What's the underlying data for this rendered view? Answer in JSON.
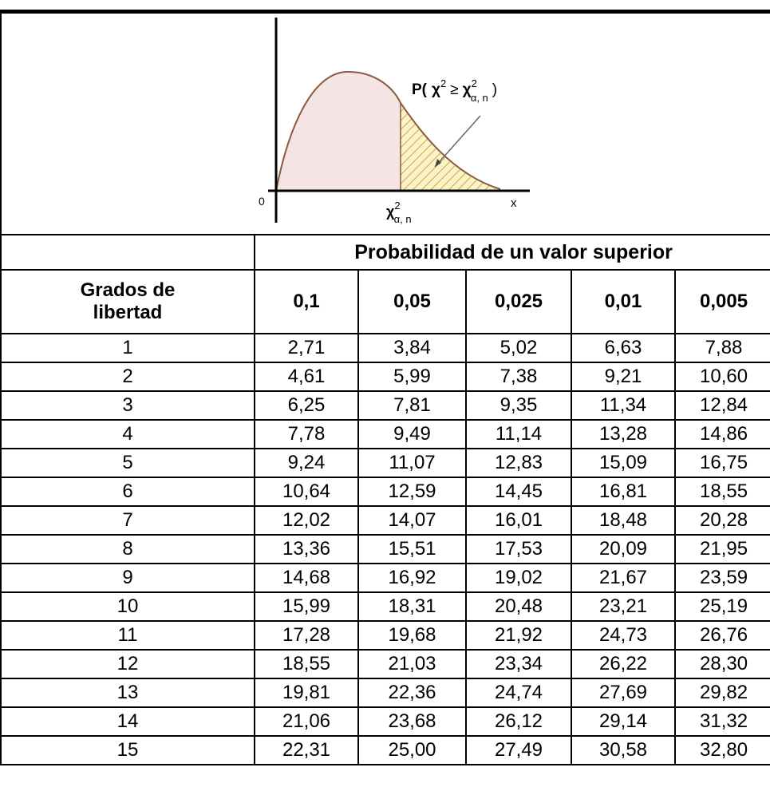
{
  "diagram": {
    "label": [
      "P(",
      "χ",
      "2",
      "≥",
      "χ",
      "2",
      "α, n",
      ")"
    ],
    "origin": "0",
    "x_axis": "x",
    "critical": [
      "χ",
      "2",
      "α, n"
    ]
  },
  "table": {
    "group_header": "Probabilidad de un valor superior",
    "row_header": "Grados de libertad",
    "columns": [
      "0,1",
      "0,05",
      "0,025",
      "0,01",
      "0,005"
    ],
    "rows": [
      [
        "1",
        "2,71",
        "3,84",
        "5,02",
        "6,63",
        "7,88"
      ],
      [
        "2",
        "4,61",
        "5,99",
        "7,38",
        "9,21",
        "10,60"
      ],
      [
        "3",
        "6,25",
        "7,81",
        "9,35",
        "11,34",
        "12,84"
      ],
      [
        "4",
        "7,78",
        "9,49",
        "11,14",
        "13,28",
        "14,86"
      ],
      [
        "5",
        "9,24",
        "11,07",
        "12,83",
        "15,09",
        "16,75"
      ],
      [
        "6",
        "10,64",
        "12,59",
        "14,45",
        "16,81",
        "18,55"
      ],
      [
        "7",
        "12,02",
        "14,07",
        "16,01",
        "18,48",
        "20,28"
      ],
      [
        "8",
        "13,36",
        "15,51",
        "17,53",
        "20,09",
        "21,95"
      ],
      [
        "9",
        "14,68",
        "16,92",
        "19,02",
        "21,67",
        "23,59"
      ],
      [
        "10",
        "15,99",
        "18,31",
        "20,48",
        "23,21",
        "25,19"
      ],
      [
        "11",
        "17,28",
        "19,68",
        "21,92",
        "24,73",
        "26,76"
      ],
      [
        "12",
        "18,55",
        "21,03",
        "23,34",
        "26,22",
        "28,30"
      ],
      [
        "13",
        "19,81",
        "22,36",
        "24,74",
        "27,69",
        "29,82"
      ],
      [
        "14",
        "21,06",
        "23,68",
        "26,12",
        "29,14",
        "31,32"
      ],
      [
        "15",
        "22,31",
        "25,00",
        "27,49",
        "30,58",
        "32,80"
      ]
    ]
  }
}
